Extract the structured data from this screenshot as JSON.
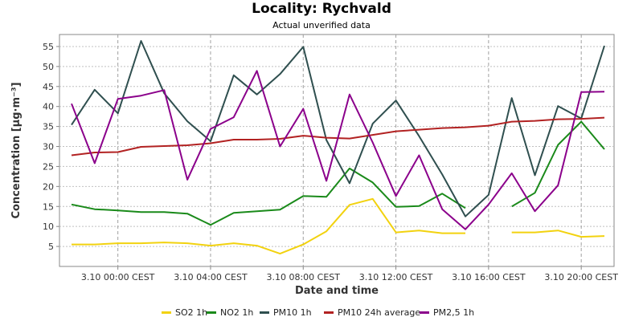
{
  "header": {
    "title": "Locality: Rychvald",
    "subtitle": "Actual unverified data"
  },
  "chart_data": {
    "type": "line",
    "title": "Locality: Rychvald",
    "subtitle": "Actual unverified data",
    "xlabel": "Date and time",
    "ylabel": "Concentration [µg·m⁻³]",
    "ylim": [
      0,
      58
    ],
    "yticks": [
      5,
      10,
      15,
      20,
      25,
      30,
      35,
      40,
      45,
      50,
      55
    ],
    "x": [
      "3.10 22:00",
      "3.10 23:00",
      "3.10 00:00",
      "3.10 01:00",
      "3.10 02:00",
      "3.10 03:00",
      "3.10 04:00",
      "3.10 05:00",
      "3.10 06:00",
      "3.10 07:00",
      "3.10 08:00",
      "3.10 09:00",
      "3.10 10:00",
      "3.10 11:00",
      "3.10 12:00",
      "3.10 13:00",
      "3.10 14:00",
      "3.10 15:00",
      "3.10 16:00",
      "3.10 17:00",
      "3.10 18:00",
      "3.10 19:00",
      "3.10 20:00",
      "3.10 21:00"
    ],
    "xticks": [
      {
        "index": 2,
        "label": "3.10 00:00 CEST"
      },
      {
        "index": 6,
        "label": "3.10 04:00 CEST"
      },
      {
        "index": 10,
        "label": "3.10 08:00 CEST"
      },
      {
        "index": 14,
        "label": "3.10 12:00 CEST"
      },
      {
        "index": 18,
        "label": "3.10 16:00 CEST"
      },
      {
        "index": 22,
        "label": "3.10 20:00 CEST"
      }
    ],
    "grid": true,
    "legend_position": "bottom",
    "series": [
      {
        "name": "SO2 1h",
        "color": "#f2d20f",
        "values": [
          5.5,
          5.5,
          5.8,
          5.8,
          6.0,
          5.8,
          5.2,
          5.8,
          5.2,
          3.2,
          5.5,
          8.8,
          15.4,
          16.9,
          8.5,
          9.0,
          8.3,
          8.3,
          null,
          8.5,
          8.5,
          9.0,
          7.4,
          7.6
        ]
      },
      {
        "name": "NO2 1h",
        "color": "#1a8a1a",
        "values": [
          15.5,
          14.3,
          14.0,
          13.6,
          13.6,
          13.2,
          10.4,
          13.4,
          13.8,
          14.2,
          17.6,
          17.4,
          24.5,
          21.0,
          14.9,
          15.1,
          18.2,
          14.6,
          null,
          15.0,
          18.4,
          30.4,
          36.2,
          29.3
        ]
      },
      {
        "name": "PM10 1h",
        "color": "#2f4f4f",
        "values": [
          35.4,
          44.2,
          38.3,
          56.4,
          43.3,
          36.3,
          31.3,
          47.8,
          43.0,
          48.1,
          54.9,
          31.6,
          20.8,
          35.7,
          41.5,
          32.6,
          23.0,
          12.5,
          17.9,
          42.1,
          22.8,
          40.1,
          37.0,
          55.2
        ]
      },
      {
        "name": "PM10 24h average",
        "color": "#b22222",
        "values": [
          27.8,
          28.5,
          28.6,
          29.9,
          30.1,
          30.3,
          30.8,
          31.7,
          31.7,
          31.9,
          32.7,
          32.2,
          32.0,
          32.9,
          33.8,
          34.2,
          34.6,
          34.8,
          35.2,
          36.2,
          36.4,
          36.8,
          36.9,
          37.2
        ]
      },
      {
        "name": "PM2,5 1h",
        "color": "#8b008b",
        "values": [
          40.7,
          25.8,
          41.9,
          42.7,
          44.1,
          21.7,
          34.4,
          37.3,
          48.9,
          30.0,
          39.4,
          21.4,
          43.0,
          31.0,
          17.6,
          27.8,
          14.3,
          9.3,
          15.5,
          23.3,
          13.8,
          20.3,
          43.6,
          43.7
        ]
      }
    ]
  }
}
